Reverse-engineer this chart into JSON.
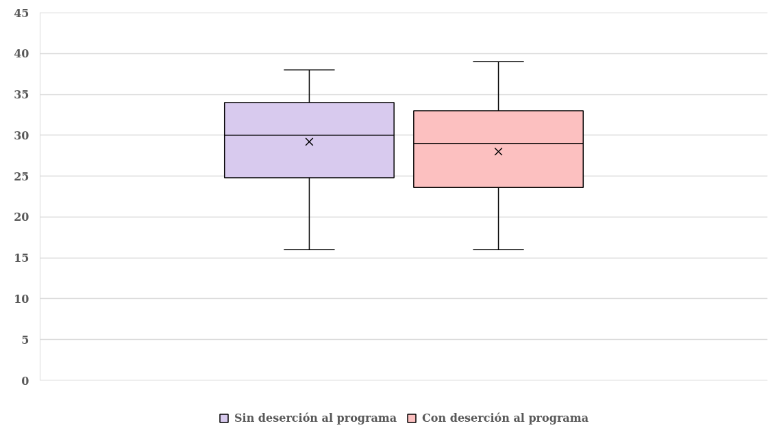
{
  "chart_data": {
    "type": "box",
    "categories": [
      null
    ],
    "ylim": [
      0,
      45
    ],
    "yticks": [
      0,
      5,
      10,
      15,
      20,
      25,
      30,
      35,
      40,
      45
    ],
    "grid": "y",
    "legend": "bottom",
    "tick_labels": "y",
    "series": [
      {
        "name": "Sin deserción al programa",
        "color": "#d8caee",
        "boxes": [
          {
            "low": 16,
            "q1": 24.8,
            "median": 30,
            "q3": 34,
            "high": 38,
            "mean": 29.2
          }
        ]
      },
      {
        "name": "Con deserción al programa",
        "color": "#fcc0c0",
        "boxes": [
          {
            "low": 16,
            "q1": 23.6,
            "median": 29,
            "q3": 33,
            "high": 39,
            "mean": 28.0
          }
        ]
      }
    ]
  }
}
